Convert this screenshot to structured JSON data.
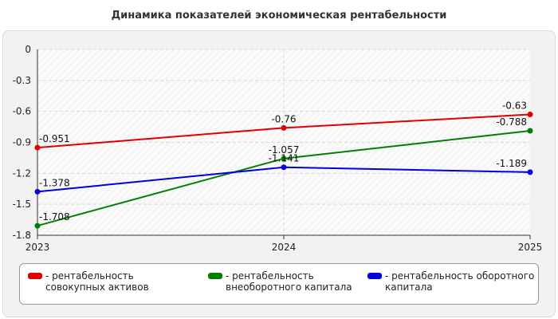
{
  "chart_data": {
    "type": "line",
    "title": "Динамика показателей экономическая рентабельности",
    "categories": [
      "2023",
      "2024",
      "2025"
    ],
    "ylim": [
      -1.8,
      0
    ],
    "yticks": [
      "0",
      "-0.3",
      "-0.6",
      "-0.9",
      "-1.2",
      "-1.5",
      "-1.8"
    ],
    "ytick_values": [
      0,
      -0.3,
      -0.6,
      -0.9,
      -1.2,
      -1.5,
      -1.8
    ],
    "grid": true,
    "legend_position": "bottom",
    "series": [
      {
        "name": "- рентабельность совокупных активов",
        "color": "#e00000",
        "values": [
          -0.951,
          -0.76,
          -0.63
        ],
        "labels": [
          "-0.951",
          "-0.76",
          "-0.63"
        ]
      },
      {
        "name": "- рентабельность внеоборотного капитала",
        "color": "#008000",
        "values": [
          -1.708,
          -1.057,
          -0.788
        ],
        "labels": [
          "-1.708",
          "-1.057",
          "-0.788"
        ]
      },
      {
        "name": "- рентабельность оборотного капитала",
        "color": "#0000e0",
        "values": [
          -1.378,
          -1.141,
          -1.189
        ],
        "labels": [
          "-1.378",
          "-1.141",
          "-1.189"
        ]
      }
    ]
  }
}
